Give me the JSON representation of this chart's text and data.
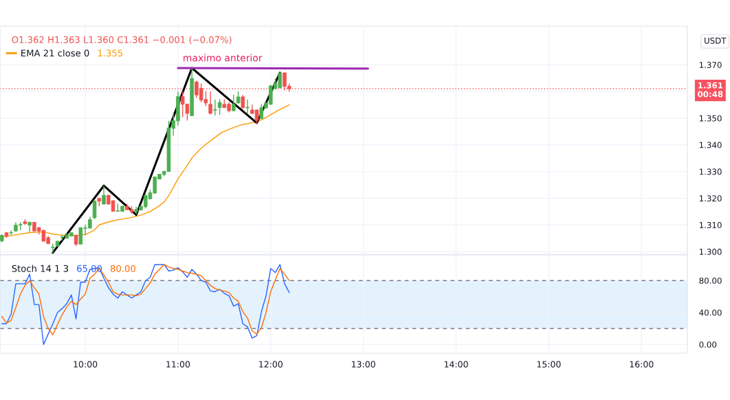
{
  "chart_data": [
    {
      "type": "candlestick",
      "title": "O1.362 H1.363 L1.360 C1.361 −0.001 (−0.07%)",
      "ylabel": "USDT",
      "legend": "top left",
      "tick_labels": "y",
      "grid": true,
      "x": [
        9.1,
        9.15,
        9.2,
        9.25,
        9.3,
        9.35,
        9.4,
        9.45,
        9.5,
        9.55,
        9.6,
        9.65,
        9.7,
        9.75,
        9.8,
        9.85,
        9.9,
        9.95,
        10,
        10.05,
        10.1,
        10.15,
        10.2,
        10.25,
        10.3,
        10.35,
        10.4,
        10.45,
        10.5,
        10.55,
        10.6,
        10.65,
        10.7,
        10.75,
        10.8,
        10.85,
        10.9,
        10.95,
        11,
        11.05,
        11.1,
        11.15,
        11.2,
        11.25,
        11.3,
        11.35,
        11.4,
        11.45,
        11.5,
        11.55,
        11.6,
        11.65,
        11.7,
        11.75,
        11.8,
        11.85,
        11.9,
        11.95,
        12,
        12.05,
        12.1,
        12.15,
        12.2
      ],
      "ohlc": [
        [
          1.304,
          1.3065,
          1.3035,
          1.3061
        ],
        [
          1.3071,
          1.3072,
          1.3052,
          1.3058
        ],
        [
          1.307,
          1.3079,
          1.3062,
          1.3072
        ],
        [
          1.3077,
          1.311,
          1.3075,
          1.3099
        ],
        [
          1.31,
          1.311,
          1.308,
          1.3102
        ],
        [
          1.3112,
          1.3121,
          1.31,
          1.3105
        ],
        [
          1.3099,
          1.3112,
          1.3073,
          1.311
        ],
        [
          1.311,
          1.3111,
          1.3077,
          1.3077
        ],
        [
          1.309,
          1.3092,
          1.3064,
          1.3077
        ],
        [
          1.308,
          1.3081,
          1.3038,
          1.3039
        ],
        [
          1.3052,
          1.3058,
          1.3028,
          1.303
        ],
        [
          1.3015,
          1.303,
          1.2996,
          1.3017
        ],
        [
          1.302,
          1.3041,
          1.3019,
          1.3039
        ],
        [
          1.3053,
          1.3064,
          1.3041,
          1.3055
        ],
        [
          1.305,
          1.3071,
          1.3049,
          1.3061
        ],
        [
          1.3058,
          1.3072,
          1.3057,
          1.3071
        ],
        [
          1.3061,
          1.3063,
          1.3021,
          1.3028
        ],
        [
          1.3028,
          1.309,
          1.3028,
          1.309
        ],
        [
          1.3087,
          1.3101,
          1.3063,
          1.3089
        ],
        [
          1.3088,
          1.3131,
          1.3087,
          1.312
        ],
        [
          1.3127,
          1.3191,
          1.3122,
          1.319
        ],
        [
          1.32,
          1.3201,
          1.317,
          1.3189
        ],
        [
          1.3178,
          1.3247,
          1.3176,
          1.3211
        ],
        [
          1.3211,
          1.3213,
          1.3177,
          1.3178
        ],
        [
          1.3191,
          1.3192,
          1.315,
          1.3151
        ],
        [
          1.3151,
          1.318,
          1.315,
          1.3153
        ],
        [
          1.3151,
          1.3172,
          1.3149,
          1.317
        ],
        [
          1.317,
          1.3179,
          1.3156,
          1.3157
        ],
        [
          1.3158,
          1.317,
          1.3142,
          1.3149
        ],
        [
          1.315,
          1.3168,
          1.314,
          1.3158
        ],
        [
          1.3157,
          1.3171,
          1.3153,
          1.317
        ],
        [
          1.3168,
          1.3212,
          1.3161,
          1.3211
        ],
        [
          1.3198,
          1.3232,
          1.3196,
          1.3221
        ],
        [
          1.3219,
          1.3281,
          1.3218,
          1.328
        ],
        [
          1.3272,
          1.3291,
          1.3271,
          1.329
        ],
        [
          1.3289,
          1.3302,
          1.3283,
          1.3301
        ],
        [
          1.33,
          1.349,
          1.3299,
          1.3463
        ],
        [
          1.3462,
          1.3521,
          1.3434,
          1.3491
        ],
        [
          1.349,
          1.36,
          1.3473,
          1.3581
        ],
        [
          1.3581,
          1.36,
          1.3505,
          1.3552
        ],
        [
          1.3553,
          1.3554,
          1.3491,
          1.3518
        ],
        [
          1.3509,
          1.3688,
          1.3508,
          1.3649
        ],
        [
          1.3636,
          1.364,
          1.3575,
          1.3587
        ],
        [
          1.3612,
          1.363,
          1.356,
          1.3568
        ],
        [
          1.357,
          1.3601,
          1.3545,
          1.3557
        ],
        [
          1.3552,
          1.36,
          1.3515,
          1.3518
        ],
        [
          1.353,
          1.357,
          1.3511,
          1.3532
        ],
        [
          1.354,
          1.3571,
          1.3513,
          1.3559
        ],
        [
          1.3552,
          1.3571,
          1.3538,
          1.354
        ],
        [
          1.3552,
          1.3561,
          1.3522,
          1.3528
        ],
        [
          1.3528,
          1.3588,
          1.3527,
          1.3552
        ],
        [
          1.3557,
          1.36,
          1.3555,
          1.358
        ],
        [
          1.358,
          1.3587,
          1.3535,
          1.3539
        ],
        [
          1.3539,
          1.357,
          1.3518,
          1.3541
        ],
        [
          1.3531,
          1.3551,
          1.3516,
          1.3518
        ],
        [
          1.3531,
          1.3532,
          1.348,
          1.3492
        ],
        [
          1.3499,
          1.3552,
          1.3497,
          1.3539
        ],
        [
          1.3539,
          1.356,
          1.3535,
          1.3557
        ],
        [
          1.3552,
          1.3625,
          1.355,
          1.3621
        ],
        [
          1.3611,
          1.3648,
          1.3608,
          1.3631
        ],
        [
          1.3614,
          1.367,
          1.3612,
          1.367
        ],
        [
          1.367,
          1.3671,
          1.3604,
          1.3619
        ],
        [
          1.362,
          1.363,
          1.36,
          1.361
        ]
      ],
      "colors": [
        "#4caf50",
        "#ef5350",
        "#4caf50",
        "#4caf50",
        "#4caf50",
        "#ef5350",
        "#4caf50",
        "#ef5350",
        "#ef5350",
        "#ef5350",
        "#ef5350",
        "#4caf50",
        "#4caf50",
        "#4caf50",
        "#4caf50",
        "#4caf50",
        "#ef5350",
        "#4caf50",
        "#4caf50",
        "#4caf50",
        "#4caf50",
        "#ef5350",
        "#4caf50",
        "#ef5350",
        "#ef5350",
        "#4caf50",
        "#4caf50",
        "#ef5350",
        "#ef5350",
        "#4caf50",
        "#4caf50",
        "#4caf50",
        "#4caf50",
        "#4caf50",
        "#4caf50",
        "#4caf50",
        "#4caf50",
        "#4caf50",
        "#4caf50",
        "#ef5350",
        "#ef5350",
        "#4caf50",
        "#ef5350",
        "#ef5350",
        "#ef5350",
        "#ef5350",
        "#4caf50",
        "#4caf50",
        "#ef5350",
        "#ef5350",
        "#4caf50",
        "#4caf50",
        "#ef5350",
        "#4caf50",
        "#ef5350",
        "#ef5350",
        "#4caf50",
        "#4caf50",
        "#4caf50",
        "#4caf50",
        "#4caf50",
        "#ef5350",
        "#ef5350"
      ],
      "series": [
        {
          "type": "line",
          "name": "EMA 21 close 0",
          "color": "#ff9800",
          "x": [
            9.1,
            9.25,
            9.4,
            9.55,
            9.65,
            9.75,
            9.9,
            10,
            10.05,
            10.1,
            10.15,
            10.25,
            10.35,
            10.5,
            10.6,
            10.7,
            10.8,
            10.85,
            10.9,
            10.95,
            11,
            11.08,
            11.15,
            11.23,
            11.3,
            11.38,
            11.47,
            11.57,
            11.67,
            11.85,
            11.92,
            12,
            12.1,
            12.2
          ],
          "values": [
            1.3054,
            1.3063,
            1.3071,
            1.3074,
            1.3066,
            1.3061,
            1.3061,
            1.3064,
            1.3072,
            1.3082,
            1.31,
            1.3111,
            1.3119,
            1.3128,
            1.3137,
            1.315,
            1.3172,
            1.3186,
            1.321,
            1.324,
            1.3273,
            1.3312,
            1.3351,
            1.3381,
            1.3402,
            1.3423,
            1.3446,
            1.3461,
            1.3474,
            1.3487,
            1.3497,
            1.3513,
            1.3533,
            1.355
          ]
        },
        {
          "type": "line",
          "color": "#000000",
          "x": [
            9.65,
            10.2,
            10.55,
            11.15,
            11.85,
            12.1
          ],
          "values": [
            1.2996,
            1.3247,
            1.3138,
            1.3688,
            1.3482,
            1.367
          ]
        },
        {
          "type": "line",
          "color": "#9c27b0",
          "x": [
            11.0,
            13.05
          ],
          "values": [
            1.3688,
            1.3686
          ]
        }
      ],
      "annotations": [
        {
          "text": "maximo anterior",
          "x": 11.0,
          "y": 1.3688
        },
        "1.355"
      ],
      "ref_lines": [
        {
          "axis": "y",
          "value": 1.361,
          "label": "1.361\n00:48",
          "color": "#f7525f",
          "line_style": "dotted"
        }
      ],
      "xlim": [
        9.08,
        16.495
      ],
      "xticks": [
        {
          "value": 10,
          "label": null
        },
        {
          "value": 11,
          "label": null
        },
        {
          "value": 12,
          "label": null
        },
        {
          "value": 13,
          "label": null
        },
        {
          "value": 14,
          "label": null
        },
        {
          "value": 15,
          "label": null
        },
        {
          "value": 16,
          "label": null
        }
      ],
      "ylim": [
        1.299,
        1.3845
      ],
      "yticks": [
        {
          "value": 1.3,
          "label": "1.300"
        },
        {
          "value": 1.31,
          "label": "1.310"
        },
        {
          "value": 1.32,
          "label": "1.320"
        },
        {
          "value": 1.33,
          "label": "1.330"
        },
        {
          "value": 1.34,
          "label": "1.340"
        },
        {
          "value": 1.35,
          "label": "1.350"
        },
        {
          "value": 1.36,
          "label": null
        },
        {
          "value": 1.37,
          "label": "1.370"
        }
      ]
    },
    {
      "type": "line",
      "title": "Stoch 14 1 3",
      "grid": true,
      "x": [
        9.1,
        9.15,
        9.2,
        9.25,
        9.3,
        9.35,
        9.4,
        9.45,
        9.5,
        9.55,
        9.6,
        9.65,
        9.7,
        9.75,
        9.8,
        9.85,
        9.9,
        9.95,
        10,
        10.05,
        10.1,
        10.15,
        10.2,
        10.25,
        10.3,
        10.35,
        10.4,
        10.45,
        10.5,
        10.55,
        10.6,
        10.65,
        10.7,
        10.75,
        10.8,
        10.85,
        10.9,
        10.95,
        11,
        11.05,
        11.1,
        11.15,
        11.2,
        11.25,
        11.3,
        11.35,
        11.4,
        11.45,
        11.5,
        11.55,
        11.6,
        11.65,
        11.7,
        11.75,
        11.8,
        11.85,
        11.9,
        11.95,
        12,
        12.05,
        12.1,
        12.15,
        12.2
      ],
      "series": [
        {
          "color": "#2962ff",
          "values": [
            26,
            26,
            38,
            76,
            76,
            76,
            88,
            50,
            50,
            0,
            13,
            26,
            40,
            45,
            51,
            62,
            32,
            78,
            78,
            94,
            95,
            96,
            83,
            71,
            63,
            58,
            66,
            62,
            58,
            62,
            66,
            80,
            84,
            100,
            100,
            100,
            92,
            93,
            96,
            91,
            84,
            94,
            88,
            80,
            78,
            67,
            66,
            69,
            64,
            61,
            48,
            51,
            26,
            22,
            8,
            11,
            41,
            61,
            95,
            90,
            100,
            76,
            65
          ]
        },
        {
          "color": "#ff6d00",
          "values": [
            35,
            27,
            30,
            46,
            63,
            74,
            80,
            71,
            63,
            35,
            20,
            12,
            25,
            37,
            47,
            54,
            50,
            57,
            63,
            83,
            88,
            95,
            87,
            78,
            66,
            63,
            62,
            62,
            62,
            61,
            63,
            70,
            77,
            88,
            94,
            100,
            97,
            95,
            94,
            92,
            90,
            89,
            88,
            86,
            80,
            74,
            70,
            68,
            67,
            65,
            58,
            54,
            41,
            33,
            17,
            13,
            21,
            40,
            66,
            81,
            95,
            88,
            80
          ]
        }
      ],
      "annotations": [
        "65.00",
        "80.00"
      ],
      "bands": [
        {
          "axis": "y",
          "from": 20,
          "to": 80,
          "color": "#e3f2fd"
        }
      ],
      "ref_lines": [
        {
          "axis": "y",
          "value": 80,
          "color": "#787b86",
          "line_style": "dashed"
        },
        {
          "axis": "y",
          "value": 20,
          "color": "#787b86",
          "line_style": "dashed"
        }
      ],
      "xlim": [
        9.08,
        16.495
      ],
      "xticks": [
        {
          "value": 10,
          "label": "10:00"
        },
        {
          "value": 11,
          "label": "11:00"
        },
        {
          "value": 12,
          "label": "12:00"
        },
        {
          "value": 13,
          "label": "13:00"
        },
        {
          "value": 14,
          "label": "14:00"
        },
        {
          "value": 15,
          "label": "15:00"
        },
        {
          "value": 16,
          "label": "16:00"
        }
      ],
      "ylim": [
        -11,
        112
      ],
      "yticks": [
        {
          "value": 0,
          "label": "0.00"
        },
        {
          "value": 40,
          "label": "40.00"
        },
        {
          "value": 80,
          "label": "80.00"
        }
      ]
    }
  ]
}
